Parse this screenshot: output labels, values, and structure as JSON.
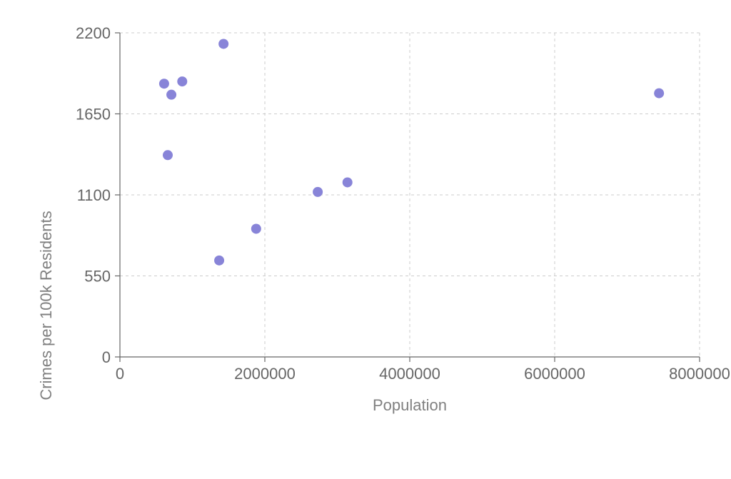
{
  "chart_data": {
    "type": "scatter",
    "title": "",
    "xlabel": "Population",
    "ylabel": "Crimes per 100k Residents",
    "xlim": [
      0,
      8000000
    ],
    "ylim": [
      0,
      2200
    ],
    "xticks": [
      0,
      2000000,
      4000000,
      6000000,
      8000000
    ],
    "xtick_labels": [
      "0",
      "2000000",
      "4000000",
      "6000000",
      "8000000"
    ],
    "yticks": [
      0,
      550,
      1100,
      1650,
      2200
    ],
    "ytick_labels": [
      "0",
      "550",
      "1100",
      "1650",
      "2200"
    ],
    "grid": true,
    "point_color": "#8884d8",
    "points": [
      {
        "x": 610000,
        "y": 1855
      },
      {
        "x": 710000,
        "y": 1780
      },
      {
        "x": 860000,
        "y": 1870
      },
      {
        "x": 1430000,
        "y": 2125
      },
      {
        "x": 660000,
        "y": 1370
      },
      {
        "x": 2730000,
        "y": 1120
      },
      {
        "x": 3140000,
        "y": 1185
      },
      {
        "x": 1880000,
        "y": 870
      },
      {
        "x": 1370000,
        "y": 655
      },
      {
        "x": 7440000,
        "y": 1790
      }
    ]
  }
}
